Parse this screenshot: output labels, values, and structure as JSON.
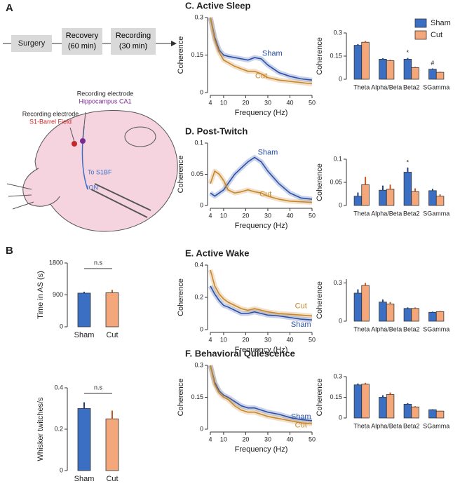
{
  "panel_labels": [
    "A",
    "B"
  ],
  "panel_a": {
    "steps": [
      "Surgery",
      "Recovery (60 min)",
      "Recording (30 min)"
    ],
    "electrodes": [
      {
        "title": "Recording electrode",
        "site": "Hippocampus CA1"
      },
      {
        "title": "Recording electrode",
        "site": "S1-Barrel Field"
      }
    ],
    "labels": [
      "To S1BF",
      "ION"
    ]
  },
  "chart_data": [
    {
      "type": "bar",
      "ylabel": "Time in AS (s)",
      "categories": [
        "Sham",
        "Cut"
      ],
      "values": [
        950,
        960
      ],
      "errors": [
        40,
        80
      ],
      "colors": [
        "#3a6fc4",
        "#f4a77a"
      ],
      "ylim": [
        0,
        1800
      ],
      "yticks": [
        0,
        900,
        1800
      ],
      "annotation": "n.s"
    },
    {
      "type": "bar",
      "ylabel": "Whisker twitches/s",
      "categories": [
        "Sham",
        "Cut"
      ],
      "values": [
        0.3,
        0.25
      ],
      "errors": [
        0.03,
        0.04
      ],
      "colors": [
        "#3a6fc4",
        "#f4a77a"
      ],
      "ylim": [
        0,
        0.4
      ],
      "yticks": [
        0,
        0.2,
        0.4
      ],
      "annotation": "n.s"
    },
    {
      "type": "line",
      "title": "C. Active Sleep",
      "xlabel": "Frequency (Hz)",
      "ylabel": "Coherence",
      "x": [
        4,
        6,
        8,
        10,
        12,
        15,
        18,
        21,
        24,
        27,
        30,
        35,
        40,
        45,
        50
      ],
      "series": [
        {
          "name": "Sham",
          "color": "#2a4fa8",
          "values": [
            0.3,
            0.22,
            0.17,
            0.15,
            0.145,
            0.14,
            0.135,
            0.13,
            0.14,
            0.135,
            0.11,
            0.08,
            0.065,
            0.055,
            0.05
          ]
        },
        {
          "name": "Cut",
          "color": "#c8862a",
          "values": [
            0.3,
            0.21,
            0.16,
            0.13,
            0.12,
            0.105,
            0.095,
            0.085,
            0.085,
            0.075,
            0.06,
            0.05,
            0.045,
            0.04,
            0.035
          ]
        }
      ],
      "xlim": [
        4,
        50
      ],
      "xticks": [
        4,
        10,
        20,
        30,
        40,
        50
      ],
      "ylim": [
        0,
        0.3
      ],
      "yticks": [
        0,
        0.15,
        0.3
      ]
    },
    {
      "type": "bar",
      "ylabel": "Coherence",
      "categories": [
        "Theta",
        "Alpha/Beta",
        "Beta2",
        "SGamma"
      ],
      "series": [
        {
          "name": "Sham",
          "color": "#3a6fc4",
          "values": [
            0.22,
            0.13,
            0.13,
            0.065
          ],
          "errors": [
            0.008,
            0.006,
            0.008,
            0.005
          ]
        },
        {
          "name": "Cut",
          "color": "#f4a77a",
          "values": [
            0.24,
            0.12,
            0.075,
            0.045
          ],
          "errors": [
            0.008,
            0.006,
            0.005,
            0.004
          ]
        }
      ],
      "ylim": [
        0,
        0.3
      ],
      "yticks": [
        0,
        0.15,
        0.3
      ],
      "legend": "top-right",
      "annotations": [
        "*",
        "#"
      ]
    },
    {
      "type": "line",
      "title": "D. Post-Twitch",
      "xlabel": "Frequency (Hz)",
      "ylabel": "Coherence",
      "x": [
        4,
        6,
        8,
        10,
        12,
        15,
        18,
        21,
        24,
        27,
        30,
        35,
        40,
        45,
        50
      ],
      "series": [
        {
          "name": "Sham",
          "color": "#2a4fa8",
          "values": [
            0.02,
            0.015,
            0.02,
            0.025,
            0.035,
            0.05,
            0.06,
            0.07,
            0.077,
            0.07,
            0.055,
            0.035,
            0.02,
            0.012,
            0.01
          ]
        },
        {
          "name": "Cut",
          "color": "#c8862a",
          "values": [
            0.035,
            0.055,
            0.05,
            0.04,
            0.025,
            0.02,
            0.022,
            0.025,
            0.022,
            0.02,
            0.015,
            0.01,
            0.007,
            0.006,
            0.005
          ]
        }
      ],
      "xlim": [
        4,
        50
      ],
      "xticks": [
        4,
        10,
        20,
        30,
        40,
        50
      ],
      "ylim": [
        0,
        0.1
      ],
      "yticks": [
        0,
        0.05,
        0.1
      ]
    },
    {
      "type": "bar",
      "ylabel": "Coherence",
      "categories": [
        "Theta",
        "Alpha/Beta",
        "Beta2",
        "SGamma"
      ],
      "series": [
        {
          "name": "Sham",
          "color": "#3a6fc4",
          "values": [
            0.02,
            0.033,
            0.072,
            0.032
          ],
          "errors": [
            0.008,
            0.01,
            0.01,
            0.004
          ]
        },
        {
          "name": "Cut",
          "color": "#f4a77a",
          "values": [
            0.045,
            0.035,
            0.03,
            0.02
          ],
          "errors": [
            0.017,
            0.01,
            0.007,
            0.004
          ]
        }
      ],
      "ylim": [
        0,
        0.1
      ],
      "yticks": [
        0,
        0.05,
        0.1
      ],
      "annotations": [
        "*"
      ]
    },
    {
      "type": "line",
      "title": "E. Active Wake",
      "xlabel": "Frequency (Hz)",
      "ylabel": "Coherence",
      "x": [
        4,
        6,
        8,
        10,
        12,
        15,
        18,
        21,
        24,
        27,
        30,
        35,
        40,
        45,
        50
      ],
      "series": [
        {
          "name": "Sham",
          "color": "#2a4fa8",
          "values": [
            0.27,
            0.22,
            0.18,
            0.15,
            0.14,
            0.12,
            0.1,
            0.1,
            0.11,
            0.1,
            0.09,
            0.085,
            0.075,
            0.065,
            0.06
          ]
        },
        {
          "name": "Cut",
          "color": "#c8862a",
          "values": [
            0.37,
            0.27,
            0.22,
            0.19,
            0.17,
            0.15,
            0.13,
            0.12,
            0.13,
            0.12,
            0.11,
            0.1,
            0.095,
            0.09,
            0.085
          ]
        }
      ],
      "xlim": [
        4,
        50
      ],
      "xticks": [
        4,
        10,
        20,
        30,
        40,
        50
      ],
      "ylim": [
        0,
        0.4
      ],
      "yticks": [
        0,
        0.2,
        0.4
      ]
    },
    {
      "type": "bar",
      "ylabel": "Coherence",
      "categories": [
        "Theta",
        "Alpha/Beta",
        "Beta2",
        "SGamma"
      ],
      "series": [
        {
          "name": "Sham",
          "color": "#3a6fc4",
          "values": [
            0.22,
            0.15,
            0.1,
            0.07
          ],
          "errors": [
            0.03,
            0.02,
            0.008,
            0.005
          ]
        },
        {
          "name": "Cut",
          "color": "#f4a77a",
          "values": [
            0.28,
            0.135,
            0.1,
            0.075
          ],
          "errors": [
            0.02,
            0.015,
            0.008,
            0.005
          ]
        }
      ],
      "ylim": [
        0,
        0.33
      ],
      "yticks": [
        0,
        0.3
      ]
    },
    {
      "type": "line",
      "title": "F. Behavioral Quiescence",
      "xlabel": "Frequency (Hz)",
      "ylabel": "Coherence",
      "x": [
        4,
        6,
        8,
        10,
        12,
        15,
        18,
        21,
        24,
        27,
        30,
        35,
        40,
        45,
        50
      ],
      "series": [
        {
          "name": "Sham",
          "color": "#2a4fa8",
          "values": [
            0.3,
            0.22,
            0.18,
            0.16,
            0.15,
            0.13,
            0.11,
            0.1,
            0.1,
            0.09,
            0.08,
            0.07,
            0.055,
            0.045,
            0.04
          ]
        },
        {
          "name": "Cut",
          "color": "#c8862a",
          "values": [
            0.3,
            0.21,
            0.17,
            0.15,
            0.14,
            0.11,
            0.09,
            0.08,
            0.08,
            0.07,
            0.06,
            0.05,
            0.04,
            0.03,
            0.025
          ]
        }
      ],
      "xlim": [
        4,
        50
      ],
      "xticks": [
        4,
        10,
        20,
        30,
        40,
        50
      ],
      "ylim": [
        0,
        0.3
      ],
      "yticks": [
        0,
        0.15,
        0.3
      ]
    },
    {
      "type": "bar",
      "ylabel": "Coherence",
      "categories": [
        "Theta",
        "Alpha/Beta",
        "Beta2",
        "SGamma"
      ],
      "series": [
        {
          "name": "Sham",
          "color": "#3a6fc4",
          "values": [
            0.24,
            0.15,
            0.1,
            0.06
          ],
          "errors": [
            0.01,
            0.015,
            0.008,
            0.003
          ]
        },
        {
          "name": "Cut",
          "color": "#f4a77a",
          "values": [
            0.245,
            0.17,
            0.08,
            0.05
          ],
          "errors": [
            0.01,
            0.015,
            0.006,
            0.003
          ]
        }
      ],
      "ylim": [
        0,
        0.3
      ],
      "yticks": [
        0,
        0.15,
        0.3
      ]
    }
  ]
}
